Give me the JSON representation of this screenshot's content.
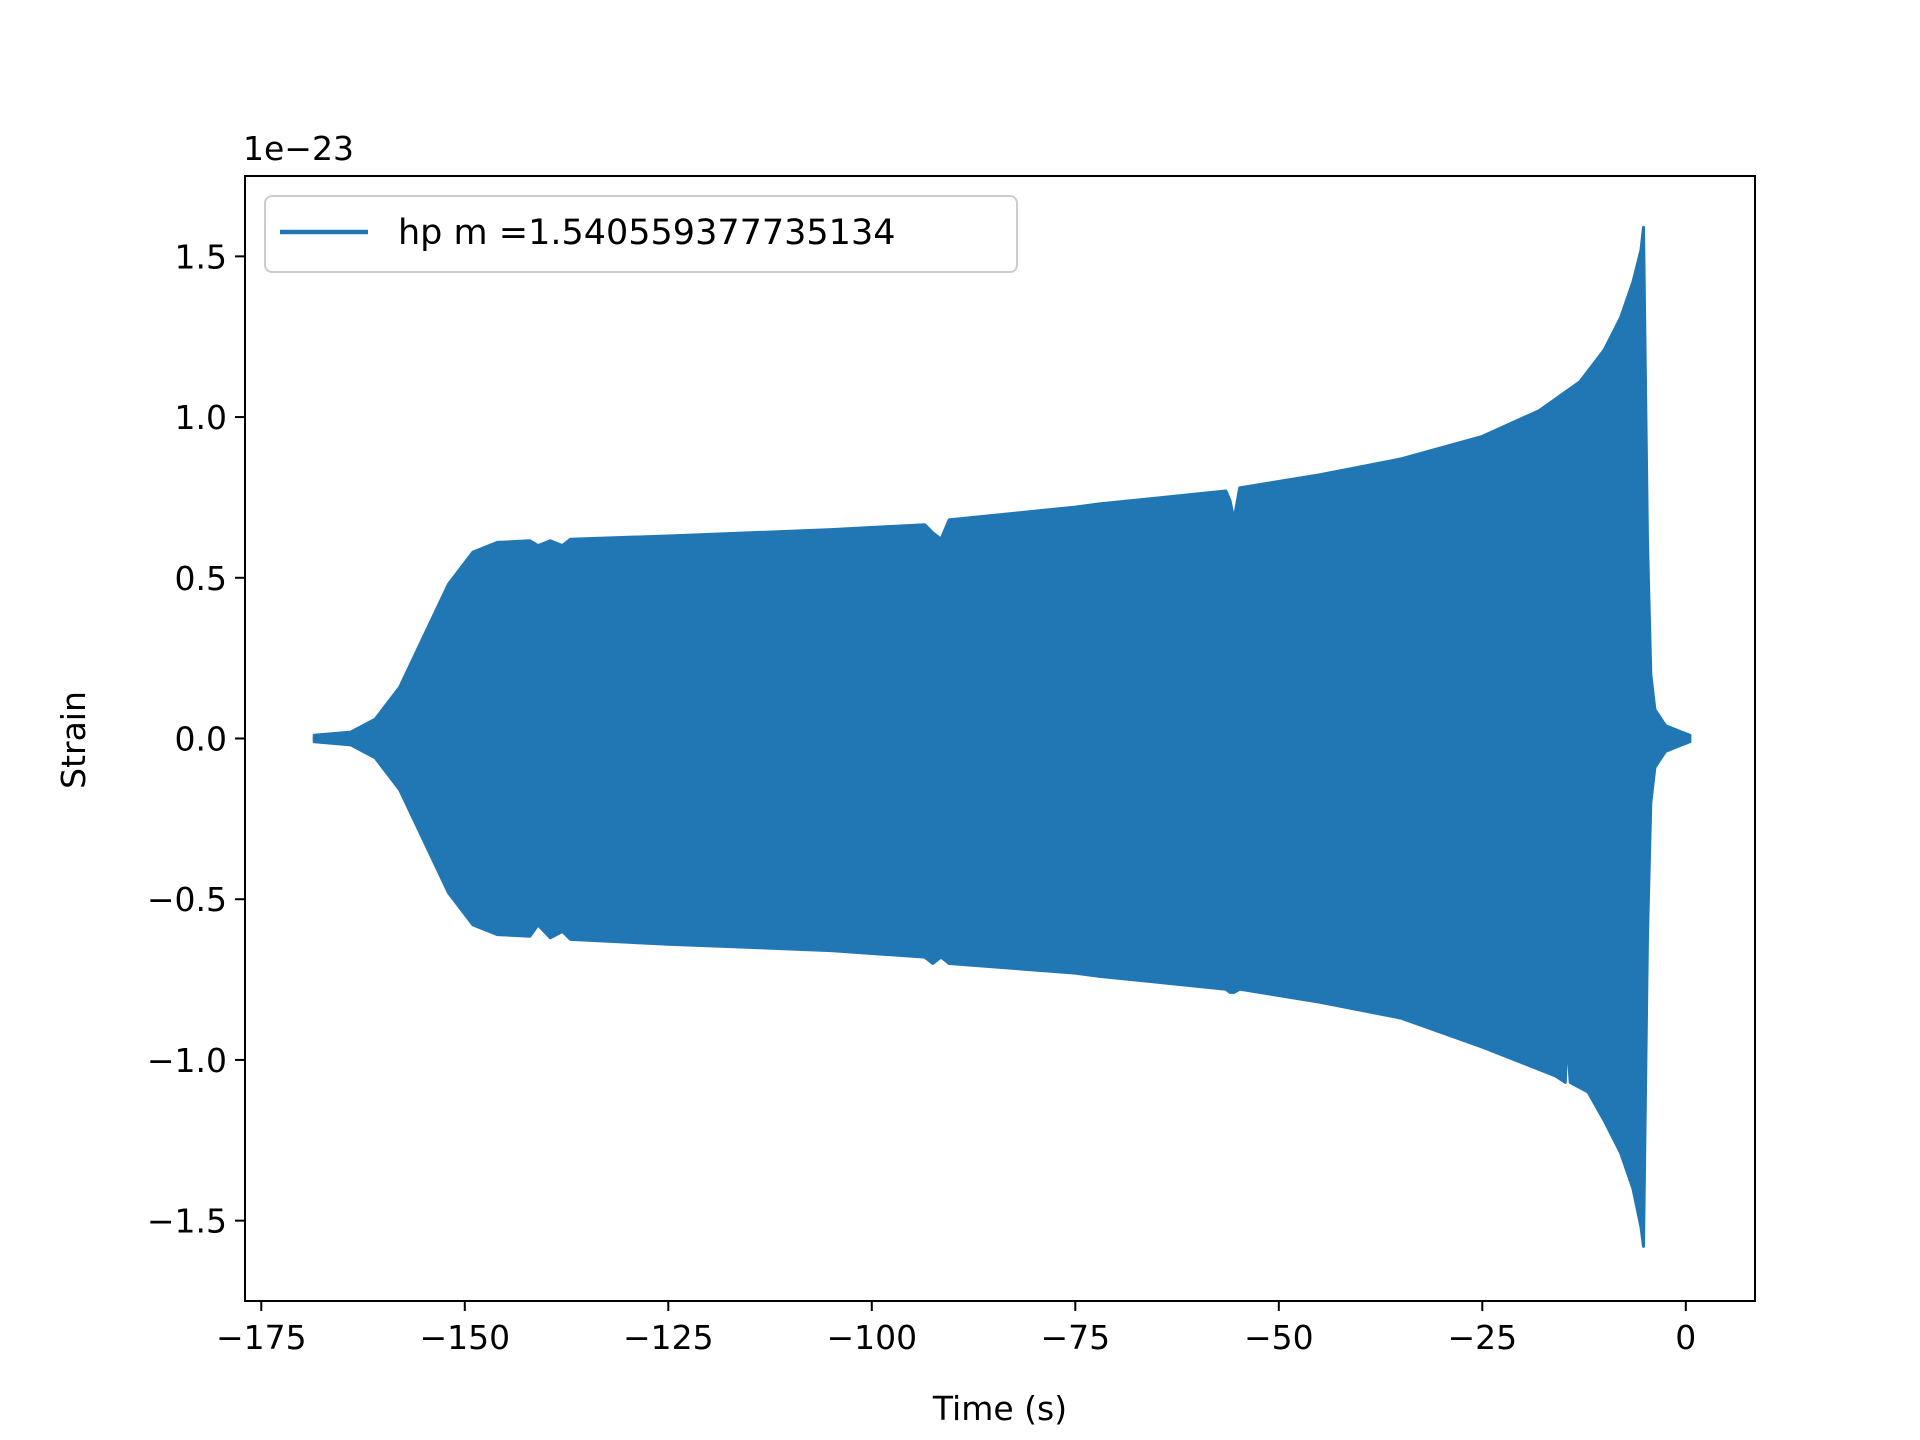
{
  "chart_data": {
    "type": "line",
    "title": "",
    "xlabel": "Time (s)",
    "ylabel": "Strain",
    "y_offset_label": "1e−23",
    "xlim": [
      -177,
      8.5
    ],
    "ylim": [
      -1.75,
      1.75
    ],
    "xticks": [
      -175,
      -150,
      -125,
      -100,
      -75,
      -50,
      -25,
      0
    ],
    "xtick_labels": [
      "−175",
      "−150",
      "−125",
      "−100",
      "−75",
      "−50",
      "−25",
      "0"
    ],
    "yticks": [
      -1.5,
      -1.0,
      -0.5,
      0.0,
      0.5,
      1.0,
      1.5
    ],
    "ytick_labels": [
      "−1.5",
      "−1.0",
      "−0.5",
      "0.0",
      "0.5",
      "1.0",
      "1.5"
    ],
    "grid": false,
    "legend_position": "upper-left",
    "series": [
      {
        "name": "hp m =1.540559377735134",
        "color": "#2077b4",
        "upper_envelope": [
          [
            -168.5,
            0.01
          ],
          [
            -164,
            0.02
          ],
          [
            -161,
            0.06
          ],
          [
            -158,
            0.16
          ],
          [
            -155,
            0.32
          ],
          [
            -152,
            0.48
          ],
          [
            -149,
            0.58
          ],
          [
            -146,
            0.61
          ],
          [
            -142,
            0.615
          ],
          [
            -141,
            0.6
          ],
          [
            -139.5,
            0.615
          ],
          [
            -138,
            0.6
          ],
          [
            -137,
            0.62
          ],
          [
            -125,
            0.63
          ],
          [
            -105,
            0.65
          ],
          [
            -93.5,
            0.665
          ],
          [
            -92.5,
            0.64
          ],
          [
            -91.5,
            0.62
          ],
          [
            -90.5,
            0.68
          ],
          [
            -75,
            0.72
          ],
          [
            -72,
            0.73
          ],
          [
            -56.5,
            0.77
          ],
          [
            -56,
            0.74
          ],
          [
            -55.5,
            0.68
          ],
          [
            -54.8,
            0.78
          ],
          [
            -45,
            0.82
          ],
          [
            -35,
            0.87
          ],
          [
            -25,
            0.94
          ],
          [
            -18,
            1.02
          ],
          [
            -13,
            1.11
          ],
          [
            -10,
            1.21
          ],
          [
            -8,
            1.31
          ],
          [
            -6.5,
            1.42
          ],
          [
            -5.5,
            1.52
          ],
          [
            -5.2,
            1.59
          ],
          [
            -4.7,
            0.61
          ],
          [
            -4.3,
            0.2
          ],
          [
            -3.8,
            0.09
          ],
          [
            -2.5,
            0.04
          ],
          [
            -0.5,
            0.02
          ],
          [
            0.5,
            0.01
          ]
        ],
        "lower_envelope": [
          [
            -168.5,
            -0.01
          ],
          [
            -164,
            -0.02
          ],
          [
            -161,
            -0.06
          ],
          [
            -158,
            -0.16
          ],
          [
            -155,
            -0.32
          ],
          [
            -152,
            -0.48
          ],
          [
            -149,
            -0.58
          ],
          [
            -146,
            -0.61
          ],
          [
            -142,
            -0.615
          ],
          [
            -141,
            -0.58
          ],
          [
            -139.5,
            -0.62
          ],
          [
            -138,
            -0.6
          ],
          [
            -137,
            -0.625
          ],
          [
            -125,
            -0.64
          ],
          [
            -105,
            -0.66
          ],
          [
            -93.5,
            -0.68
          ],
          [
            -92.5,
            -0.7
          ],
          [
            -91.5,
            -0.68
          ],
          [
            -90.5,
            -0.7
          ],
          [
            -75,
            -0.73
          ],
          [
            -72,
            -0.74
          ],
          [
            -56.5,
            -0.78
          ],
          [
            -56,
            -0.79
          ],
          [
            -55.5,
            -0.79
          ],
          [
            -54.8,
            -0.78
          ],
          [
            -45,
            -0.82
          ],
          [
            -35,
            -0.87
          ],
          [
            -25,
            -0.96
          ],
          [
            -16,
            -1.05
          ],
          [
            -14.8,
            -1.07
          ],
          [
            -14.6,
            -0.92
          ],
          [
            -14.2,
            -1.07
          ],
          [
            -12,
            -1.1
          ],
          [
            -10,
            -1.19
          ],
          [
            -8,
            -1.29
          ],
          [
            -6.5,
            -1.4
          ],
          [
            -5.5,
            -1.52
          ],
          [
            -5.2,
            -1.58
          ],
          [
            -4.7,
            -0.61
          ],
          [
            -4.3,
            -0.2
          ],
          [
            -3.8,
            -0.09
          ],
          [
            -2.5,
            -0.04
          ],
          [
            -0.5,
            -0.02
          ],
          [
            0.5,
            -0.01
          ]
        ]
      }
    ]
  }
}
